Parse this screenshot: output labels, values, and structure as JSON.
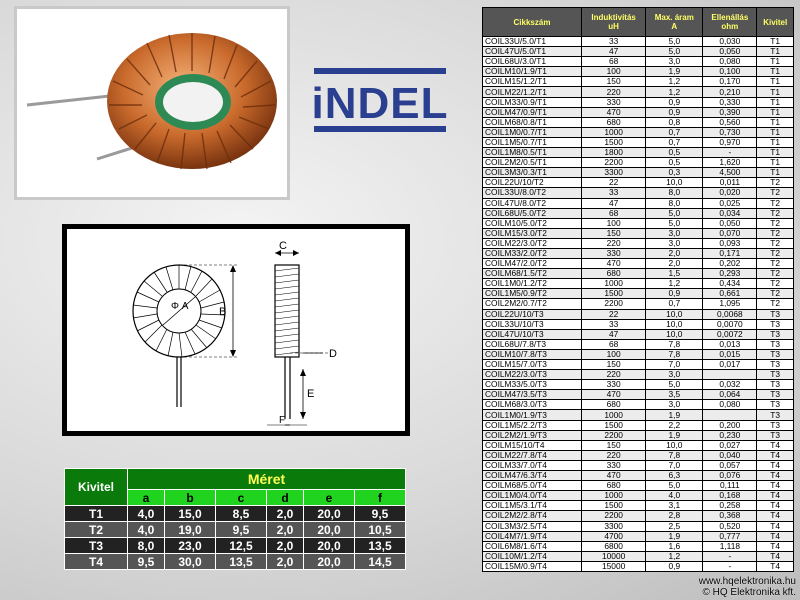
{
  "logo": {
    "text": "iNDEL"
  },
  "size_table": {
    "kivitel_label": "Kivitel",
    "meret_label": "Méret",
    "columns": [
      "a",
      "b",
      "c",
      "d",
      "e",
      "f"
    ],
    "rows": [
      {
        "kivitel": "T1",
        "values": [
          "4,0",
          "15,0",
          "8,5",
          "2,0",
          "20,0",
          "9,5"
        ]
      },
      {
        "kivitel": "T2",
        "values": [
          "4,0",
          "19,0",
          "9,5",
          "2,0",
          "20,0",
          "10,5"
        ]
      },
      {
        "kivitel": "T3",
        "values": [
          "8,0",
          "23,0",
          "12,5",
          "2,0",
          "20,0",
          "13,5"
        ]
      },
      {
        "kivitel": "T4",
        "values": [
          "9,5",
          "30,0",
          "13,5",
          "2,0",
          "20,0",
          "14,5"
        ]
      }
    ]
  },
  "drawing": {
    "labels": {
      "phi_a": "Φ A",
      "b": "B",
      "c": "C",
      "d": "D",
      "e": "E",
      "f": "F"
    }
  },
  "product_table": {
    "headers": {
      "code": "Cikkszám",
      "inductance_1": "Induktivitás",
      "inductance_2": "uH",
      "current_1": "Max. áram",
      "current_2": "A",
      "resistance_1": "Ellenállás",
      "resistance_2": "ohm",
      "type": "Kivitel"
    },
    "rows": [
      [
        "COIL33U/5.0/T1",
        "33",
        "5,0",
        "0,030",
        "T1"
      ],
      [
        "COIL47U/5.0/T1",
        "47",
        "5,0",
        "0,050",
        "T1"
      ],
      [
        "COIL68U/3.0/T1",
        "68",
        "3,0",
        "0,080",
        "T1"
      ],
      [
        "COILM10/1.9/T1",
        "100",
        "1,9",
        "0,100",
        "T1"
      ],
      [
        "COILM15/1.2/T1",
        "150",
        "1,2",
        "0,170",
        "T1"
      ],
      [
        "COILM22/1.2/T1",
        "220",
        "1,2",
        "0,210",
        "T1"
      ],
      [
        "COILM33/0.9/T1",
        "330",
        "0,9",
        "0,330",
        "T1"
      ],
      [
        "COILM47/0.9/T1",
        "470",
        "0,9",
        "0,390",
        "T1"
      ],
      [
        "COILM68/0.8/T1",
        "680",
        "0,8",
        "0,560",
        "T1"
      ],
      [
        "COIL1M0/0.7/T1",
        "1000",
        "0,7",
        "0,730",
        "T1"
      ],
      [
        "COIL1M5/0.7/T1",
        "1500",
        "0,7",
        "0,970",
        "T1"
      ],
      [
        "COIL1M8/0.5/T1",
        "1800",
        "0,5",
        "-",
        "T1"
      ],
      [
        "COIL2M2/0.5/T1",
        "2200",
        "0,5",
        "1,620",
        "T1"
      ],
      [
        "COIL3M3/0.3/T1",
        "3300",
        "0,3",
        "4,500",
        "T1"
      ],
      [
        "COIL22U/10/T2",
        "22",
        "10,0",
        "0,011",
        "T2"
      ],
      [
        "COIL33U/8.0/T2",
        "33",
        "8,0",
        "0,020",
        "T2"
      ],
      [
        "COIL47U/8.0/T2",
        "47",
        "8,0",
        "0,025",
        "T2"
      ],
      [
        "COIL68U/5.0/T2",
        "68",
        "5,0",
        "0,034",
        "T2"
      ],
      [
        "COILM10/5.0/T2",
        "100",
        "5,0",
        "0,050",
        "T2"
      ],
      [
        "COILM15/3.0/T2",
        "150",
        "3,0",
        "0,070",
        "T2"
      ],
      [
        "COILM22/3.0/T2",
        "220",
        "3,0",
        "0,093",
        "T2"
      ],
      [
        "COILM33/2.0/T2",
        "330",
        "2,0",
        "0,171",
        "T2"
      ],
      [
        "COILM47/2.0/T2",
        "470",
        "2,0",
        "0,202",
        "T2"
      ],
      [
        "COILM68/1.5/T2",
        "680",
        "1,5",
        "0,293",
        "T2"
      ],
      [
        "COIL1M0/1.2/T2",
        "1000",
        "1,2",
        "0,434",
        "T2"
      ],
      [
        "COIL1M5/0.9/T2",
        "1500",
        "0,9",
        "0,661",
        "T2"
      ],
      [
        "COIL2M2/0.7/T2",
        "2200",
        "0,7",
        "1,095",
        "T2"
      ],
      [
        "COIL22U/10/T3",
        "22",
        "10,0",
        "0,0068",
        "T3"
      ],
      [
        "COIL33U/10/T3",
        "33",
        "10,0",
        "0,0070",
        "T3"
      ],
      [
        "COIL47U/10/T3",
        "47",
        "10,0",
        "0,0072",
        "T3"
      ],
      [
        "COIL68U/7.8/T3",
        "68",
        "7,8",
        "0,013",
        "T3"
      ],
      [
        "COILM10/7.8/T3",
        "100",
        "7,8",
        "0,015",
        "T3"
      ],
      [
        "COILM15/7.0/T3",
        "150",
        "7,0",
        "0,017",
        "T3"
      ],
      [
        "COILM22/3.0/T3",
        "220",
        "3,0",
        "",
        "T3"
      ],
      [
        "COILM33/5.0/T3",
        "330",
        "5,0",
        "0,032",
        "T3"
      ],
      [
        "COILM47/3.5/T3",
        "470",
        "3,5",
        "0,064",
        "T3"
      ],
      [
        "COILM68/3.0/T3",
        "680",
        "3,0",
        "0,080",
        "T3"
      ],
      [
        "COIL1M0/1.9/T3",
        "1000",
        "1,9",
        "",
        "T3"
      ],
      [
        "COIL1M5/2.2/T3",
        "1500",
        "2,2",
        "0,200",
        "T3"
      ],
      [
        "COIL2M2/1.9/T3",
        "2200",
        "1,9",
        "0,230",
        "T3"
      ],
      [
        "COILM15/10/T4",
        "150",
        "10,0",
        "0,027",
        "T4"
      ],
      [
        "COILM22/7.8/T4",
        "220",
        "7,8",
        "0,040",
        "T4"
      ],
      [
        "COILM33/7.0/T4",
        "330",
        "7,0",
        "0,057",
        "T4"
      ],
      [
        "COILM47/6.3/T4",
        "470",
        "6,3",
        "0,076",
        "T4"
      ],
      [
        "COILM68/5.0/T4",
        "680",
        "5,0",
        "0,111",
        "T4"
      ],
      [
        "COIL1M0/4.0/T4",
        "1000",
        "4,0",
        "0,168",
        "T4"
      ],
      [
        "COIL1M5/3.1/T4",
        "1500",
        "3,1",
        "0,258",
        "T4"
      ],
      [
        "COIL2M2/2.8/T4",
        "2200",
        "2,8",
        "0,368",
        "T4"
      ],
      [
        "COIL3M3/2.5/T4",
        "3300",
        "2,5",
        "0,520",
        "T4"
      ],
      [
        "COIL4M7/1.9/T4",
        "4700",
        "1,9",
        "0,777",
        "T4"
      ],
      [
        "COIL6M8/1.6/T4",
        "6800",
        "1,6",
        "1,118",
        "T4"
      ],
      [
        "COIL10M/1.2/T4",
        "10000",
        "1,2",
        "-",
        "T4"
      ],
      [
        "COIL15M/0.9/T4",
        "15000",
        "0,9",
        "-",
        "T4"
      ]
    ]
  },
  "footer": {
    "url": "www.hqelektronika.hu",
    "copyright": "© HQ Elektronika kft."
  }
}
